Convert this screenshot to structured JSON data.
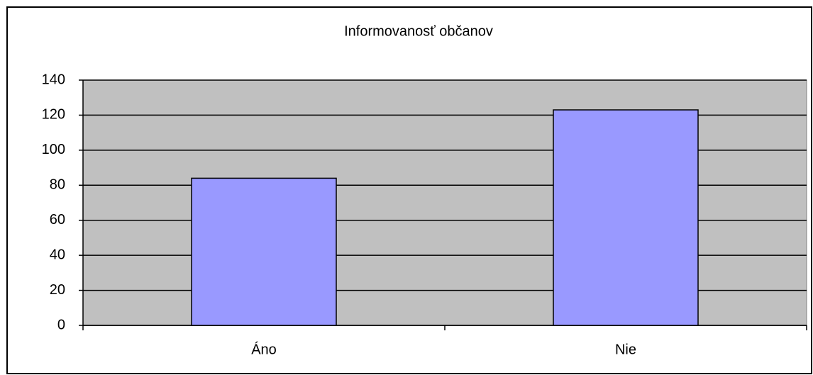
{
  "chart_data": {
    "type": "bar",
    "title": "Informovanosť občanov",
    "categories": [
      "Áno",
      "Nie"
    ],
    "values": [
      84,
      123
    ],
    "color": "#9999ff",
    "ylim": [
      0,
      140
    ],
    "yticks": [
      0,
      20,
      40,
      60,
      80,
      100,
      120,
      140
    ],
    "grid": true
  }
}
